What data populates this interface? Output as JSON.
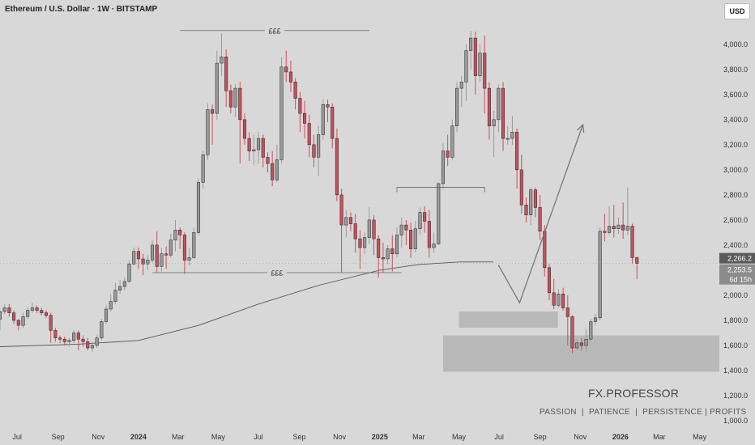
{
  "header": {
    "title": "Ethereum / U.S. Dollar · 1W · BITSTAMP",
    "currency_button": "USD"
  },
  "branding": {
    "name": "FX.PROFESSOR",
    "slogan": "PASSION  |  PATIENCE  |  PERSISTENCE | PROFITS"
  },
  "colors": {
    "up_candle": "#9a9a9a",
    "down_candle": "#c9505b",
    "background": "#d8d8d8",
    "moving_average": "#555555",
    "zone": "#b4b4b4",
    "price_tag": "#5a5a5a"
  },
  "chart_data": {
    "type": "candlestick",
    "title": "Ethereum / U.S. Dollar · 1W · BITSTAMP",
    "xlabel": "",
    "ylabel": "",
    "ylim": [
      1000,
      4160
    ],
    "xlim": [
      "2023-06-05",
      "2026-05-31"
    ],
    "grid": false,
    "y_ticks": [
      "4,000.0",
      "3,800.0",
      "3,600.0",
      "3,400.0",
      "3,200.0",
      "3,000.0",
      "2,800.0",
      "2,600.0",
      "2,400.0",
      "2,200.0",
      "2,000.0",
      "1,800.0",
      "1,600.0",
      "1,400.0",
      "1,200.0",
      "1,000.0"
    ],
    "y_tick_values": [
      4000,
      3800,
      3600,
      3400,
      3200,
      3000,
      2800,
      2600,
      2400,
      2200,
      2000,
      1800,
      1600,
      1400,
      1200,
      1000
    ],
    "x_ticks": [
      {
        "label": "Jul",
        "date": "2023-07-01",
        "bold": false
      },
      {
        "label": "Sep",
        "date": "2023-09-01",
        "bold": false
      },
      {
        "label": "Nov",
        "date": "2023-11-01",
        "bold": false
      },
      {
        "label": "2024",
        "date": "2024-01-01",
        "bold": true
      },
      {
        "label": "Mar",
        "date": "2024-03-01",
        "bold": false
      },
      {
        "label": "May",
        "date": "2024-05-01",
        "bold": false
      },
      {
        "label": "Jul",
        "date": "2024-07-01",
        "bold": false
      },
      {
        "label": "Sep",
        "date": "2024-09-01",
        "bold": false
      },
      {
        "label": "Nov",
        "date": "2024-11-01",
        "bold": false
      },
      {
        "label": "2025",
        "date": "2025-01-01",
        "bold": true
      },
      {
        "label": "Mar",
        "date": "2025-03-01",
        "bold": false
      },
      {
        "label": "May",
        "date": "2025-05-01",
        "bold": false
      },
      {
        "label": "Jul",
        "date": "2025-07-01",
        "bold": false
      },
      {
        "label": "Sep",
        "date": "2025-09-01",
        "bold": false
      },
      {
        "label": "Nov",
        "date": "2025-11-01",
        "bold": false
      },
      {
        "label": "2026",
        "date": "2026-01-01",
        "bold": true
      },
      {
        "label": "Mar",
        "date": "2026-03-01",
        "bold": false
      },
      {
        "label": "May",
        "date": "2026-05-01",
        "bold": false
      }
    ],
    "candles_start_date": "2023-06-05",
    "candles_interval_days": 7,
    "candles": [
      [
        1810,
        1870,
        1720,
        1880
      ],
      [
        1870,
        1900,
        1850,
        1930
      ],
      [
        1900,
        1860,
        1830,
        1930
      ],
      [
        1860,
        1800,
        1770,
        1880
      ],
      [
        1800,
        1760,
        1720,
        1810
      ],
      [
        1760,
        1830,
        1740,
        1860
      ],
      [
        1830,
        1880,
        1810,
        1900
      ],
      [
        1880,
        1900,
        1860,
        1940
      ],
      [
        1900,
        1880,
        1860,
        1920
      ],
      [
        1880,
        1860,
        1840,
        1900
      ],
      [
        1860,
        1840,
        1820,
        1880
      ],
      [
        1840,
        1720,
        1620,
        1860
      ],
      [
        1720,
        1660,
        1630,
        1740
      ],
      [
        1660,
        1650,
        1620,
        1680
      ],
      [
        1650,
        1630,
        1600,
        1670
      ],
      [
        1630,
        1640,
        1590,
        1660
      ],
      [
        1640,
        1700,
        1620,
        1720
      ],
      [
        1700,
        1650,
        1560,
        1720
      ],
      [
        1650,
        1630,
        1590,
        1680
      ],
      [
        1630,
        1580,
        1560,
        1660
      ],
      [
        1580,
        1600,
        1550,
        1630
      ],
      [
        1600,
        1660,
        1580,
        1680
      ],
      [
        1660,
        1790,
        1640,
        1810
      ],
      [
        1790,
        1890,
        1770,
        1920
      ],
      [
        1890,
        1950,
        1870,
        2010
      ],
      [
        1950,
        2040,
        1930,
        2100
      ],
      [
        2040,
        2070,
        2010,
        2120
      ],
      [
        2070,
        2110,
        2040,
        2140
      ],
      [
        2110,
        2250,
        2100,
        2280
      ],
      [
        2250,
        2350,
        2240,
        2380
      ],
      [
        2350,
        2290,
        2210,
        2380
      ],
      [
        2290,
        2250,
        2160,
        2330
      ],
      [
        2250,
        2280,
        2200,
        2320
      ],
      [
        2280,
        2400,
        2260,
        2440
      ],
      [
        2400,
        2230,
        2180,
        2510
      ],
      [
        2230,
        2330,
        2190,
        2380
      ],
      [
        2330,
        2320,
        2210,
        2390
      ],
      [
        2320,
        2440,
        2300,
        2490
      ],
      [
        2440,
        2520,
        2350,
        2600
      ],
      [
        2520,
        2480,
        2370,
        2540
      ],
      [
        2480,
        2280,
        2170,
        2500
      ],
      [
        2280,
        2300,
        2240,
        2380
      ],
      [
        2300,
        2500,
        2290,
        2540
      ],
      [
        2500,
        2900,
        2480,
        2930
      ],
      [
        2900,
        3120,
        2850,
        3150
      ],
      [
        3120,
        3480,
        3080,
        3530
      ],
      [
        3480,
        3450,
        3200,
        3520
      ],
      [
        3450,
        3850,
        3400,
        3950
      ],
      [
        3850,
        3900,
        3750,
        4090
      ],
      [
        3900,
        3630,
        3500,
        3960
      ],
      [
        3630,
        3500,
        3450,
        3680
      ],
      [
        3500,
        3650,
        3420,
        3680
      ],
      [
        3650,
        3400,
        3050,
        3700
      ],
      [
        3400,
        3250,
        3200,
        3450
      ],
      [
        3250,
        3150,
        3070,
        3300
      ],
      [
        3150,
        3160,
        3040,
        3280
      ],
      [
        3160,
        3250,
        3050,
        3300
      ],
      [
        3250,
        3100,
        3020,
        3280
      ],
      [
        3100,
        3050,
        2980,
        3140
      ],
      [
        3050,
        2920,
        2870,
        3150
      ],
      [
        2920,
        3080,
        2900,
        3200
      ],
      [
        3080,
        3820,
        3050,
        3900
      ],
      [
        3820,
        3780,
        3700,
        3950
      ],
      [
        3780,
        3700,
        3620,
        3870
      ],
      [
        3700,
        3570,
        3480,
        3730
      ],
      [
        3570,
        3450,
        3300,
        3620
      ],
      [
        3450,
        3370,
        3250,
        3550
      ],
      [
        3370,
        3200,
        3100,
        3440
      ],
      [
        3200,
        3100,
        3020,
        3280
      ],
      [
        3100,
        3280,
        2950,
        3350
      ],
      [
        3280,
        3520,
        3240,
        3560
      ],
      [
        3520,
        3500,
        3380,
        3560
      ],
      [
        3500,
        3250,
        3170,
        3530
      ],
      [
        3250,
        2800,
        2750,
        3330
      ],
      [
        2800,
        2560,
        2180,
        2850
      ],
      [
        2560,
        2620,
        2460,
        2680
      ],
      [
        2620,
        2570,
        2510,
        2660
      ],
      [
        2570,
        2450,
        2340,
        2650
      ],
      [
        2450,
        2380,
        2210,
        2520
      ],
      [
        2380,
        2460,
        2330,
        2500
      ],
      [
        2460,
        2600,
        2410,
        2700
      ],
      [
        2600,
        2450,
        2320,
        2640
      ],
      [
        2450,
        2300,
        2140,
        2480
      ],
      [
        2300,
        2290,
        2180,
        2420
      ],
      [
        2290,
        2370,
        2250,
        2400
      ],
      [
        2370,
        2330,
        2190,
        2480
      ],
      [
        2330,
        2480,
        2300,
        2540
      ],
      [
        2480,
        2560,
        2380,
        2620
      ],
      [
        2560,
        2520,
        2400,
        2600
      ],
      [
        2520,
        2370,
        2300,
        2580
      ],
      [
        2370,
        2530,
        2340,
        2590
      ],
      [
        2530,
        2660,
        2480,
        2700
      ],
      [
        2660,
        2590,
        2500,
        2710
      ],
      [
        2590,
        2380,
        2300,
        2680
      ],
      [
        2380,
        2410,
        2340,
        2500
      ],
      [
        2410,
        2890,
        2400,
        2900
      ],
      [
        2890,
        3150,
        2850,
        3210
      ],
      [
        3150,
        3100,
        3030,
        3280
      ],
      [
        3100,
        3350,
        3080,
        3400
      ],
      [
        3350,
        3650,
        3300,
        3700
      ],
      [
        3650,
        3700,
        3500,
        3750
      ],
      [
        3700,
        3950,
        3550,
        4000
      ],
      [
        3950,
        4050,
        3800,
        4110
      ],
      [
        4050,
        3750,
        3600,
        4100
      ],
      [
        3750,
        3930,
        3700,
        4000
      ],
      [
        3930,
        3650,
        3450,
        4070
      ],
      [
        3650,
        3350,
        3240,
        3700
      ],
      [
        3350,
        3400,
        3100,
        3470
      ],
      [
        3400,
        3650,
        3300,
        3680
      ],
      [
        3650,
        3250,
        3150,
        3700
      ],
      [
        3250,
        3250,
        3200,
        3350
      ],
      [
        3250,
        3300,
        3200,
        3430
      ],
      [
        3300,
        3000,
        2850,
        3330
      ],
      [
        3000,
        2720,
        2650,
        3120
      ],
      [
        2720,
        2640,
        2580,
        2780
      ],
      [
        2640,
        2840,
        2560,
        2860
      ],
      [
        2840,
        2700,
        2620,
        2860
      ],
      [
        2700,
        2510,
        2440,
        2800
      ],
      [
        2510,
        2220,
        2150,
        2560
      ],
      [
        2220,
        2020,
        1960,
        2250
      ],
      [
        2020,
        1920,
        1890,
        2130
      ],
      [
        1920,
        2010,
        1900,
        2050
      ],
      [
        2010,
        1900,
        1880,
        2060
      ],
      [
        1900,
        1830,
        1600,
        2000
      ],
      [
        1830,
        1580,
        1540,
        1840
      ],
      [
        1580,
        1620,
        1560,
        1650
      ],
      [
        1620,
        1600,
        1560,
        1660
      ],
      [
        1600,
        1650,
        1550,
        1730
      ],
      [
        1650,
        1790,
        1630,
        1810
      ],
      [
        1790,
        1820,
        1760,
        1850
      ],
      [
        1820,
        2510,
        1800,
        2540
      ],
      [
        2510,
        2500,
        2430,
        2650
      ],
      [
        2500,
        2550,
        2480,
        2710
      ],
      [
        2550,
        2530,
        2460,
        2720
      ],
      [
        2530,
        2560,
        2490,
        2620
      ],
      [
        2560,
        2520,
        2450,
        2740
      ],
      [
        2520,
        2550,
        2480,
        2860
      ],
      [
        2550,
        2300,
        2250,
        2570
      ],
      [
        2300,
        2254,
        2130,
        2310
      ]
    ],
    "moving_average": [
      {
        "date": "2023-06-05",
        "value": 1590
      },
      {
        "date": "2023-10-01",
        "value": 1610
      },
      {
        "date": "2024-01-01",
        "value": 1640
      },
      {
        "date": "2024-04-01",
        "value": 1760
      },
      {
        "date": "2024-07-01",
        "value": 1930
      },
      {
        "date": "2024-10-01",
        "value": 2080
      },
      {
        "date": "2025-01-01",
        "value": 2200
      },
      {
        "date": "2025-03-01",
        "value": 2245
      },
      {
        "date": "2025-05-01",
        "value": 2265
      },
      {
        "date": "2025-06-22",
        "value": 2266
      }
    ],
    "price_tags": {
      "ma_value": "2,266.2",
      "last_price": "2,253.5",
      "countdown": "6d 15h"
    },
    "annotations": {
      "equal_highs_label": "£££",
      "equal_highs_price": 4110,
      "equal_highs_from": "2024-03-04",
      "equal_highs_to": "2024-12-16",
      "equal_lows_label": "£££",
      "equal_lows_price": 2180,
      "equal_lows_from": "2024-01-22",
      "equal_lows_to": "2025-02-03",
      "range_high_price": 2860,
      "range_high_from": "2025-01-27",
      "range_high_to": "2025-06-09",
      "zones": [
        {
          "from": "2025-05-01",
          "to": "2025-09-28",
          "low": 1740,
          "high": 1870
        },
        {
          "from": "2025-04-07",
          "to": "2026-05-31",
          "low": 1390,
          "high": 1680
        }
      ],
      "projection": [
        {
          "date": "2025-06-30",
          "value": 2240
        },
        {
          "date": "2025-08-01",
          "value": 1940
        },
        {
          "date": "2025-11-05",
          "value": 3360
        }
      ]
    }
  }
}
